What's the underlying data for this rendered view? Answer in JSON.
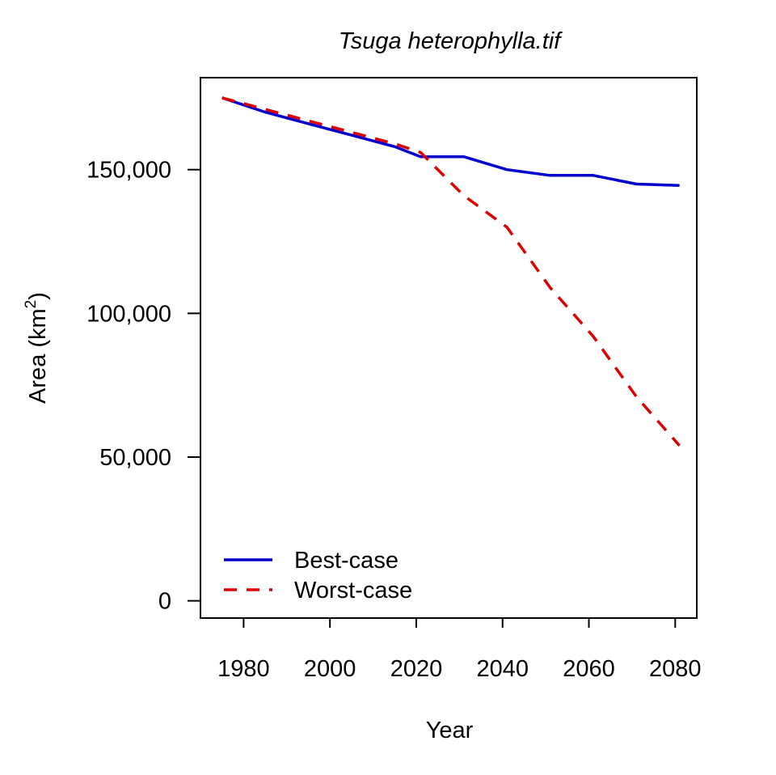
{
  "chart_data": {
    "type": "line",
    "title": "Tsuga heterophylla.tif",
    "xlabel": "Year",
    "ylabel_main": "Area (km",
    "ylabel_sup": "2",
    "ylabel_end": ")",
    "xlim": [
      1970,
      2085
    ],
    "ylim": [
      -6000,
      182000
    ],
    "xticks": [
      1980,
      2000,
      2020,
      2040,
      2060,
      2080
    ],
    "xtick_labels": [
      "1980",
      "2000",
      "2020",
      "2040",
      "2060",
      "2080"
    ],
    "yticks": [
      0,
      50000,
      100000,
      150000
    ],
    "ytick_labels": [
      "0",
      "50,000",
      "100,000",
      "150,000"
    ],
    "legend_position": "bottom-left",
    "grid": false,
    "series": [
      {
        "name": "Best-case",
        "color": "#0000CC",
        "dash": "solid",
        "x": [
          1975,
          1985,
          1995,
          2005,
          2015,
          2021,
          2031,
          2041,
          2051,
          2061,
          2071,
          2081
        ],
        "values": [
          175000,
          170000,
          166000,
          162000,
          158000,
          154500,
          154500,
          150000,
          148000,
          148000,
          145000,
          144500
        ]
      },
      {
        "name": "Worst-case",
        "color": "#DD0000",
        "dash": "dashed",
        "x": [
          1975,
          1985,
          1995,
          2005,
          2015,
          2021,
          2031,
          2041,
          2051,
          2061,
          2071,
          2081
        ],
        "values": [
          175000,
          171000,
          167000,
          163000,
          159000,
          156000,
          141000,
          130000,
          109000,
          92000,
          71000,
          54000
        ]
      }
    ]
  }
}
